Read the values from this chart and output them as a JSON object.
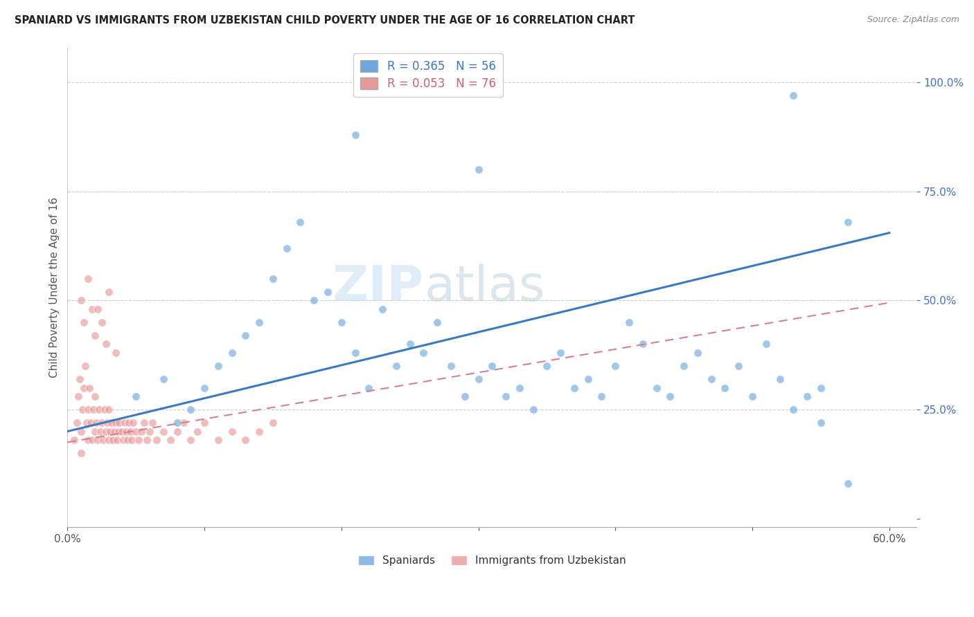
{
  "title": "SPANIARD VS IMMIGRANTS FROM UZBEKISTAN CHILD POVERTY UNDER THE AGE OF 16 CORRELATION CHART",
  "source": "Source: ZipAtlas.com",
  "ylabel": "Child Poverty Under the Age of 16",
  "xlim": [
    0.0,
    0.62
  ],
  "ylim": [
    -0.02,
    1.08
  ],
  "xtick_vals": [
    0.0,
    0.1,
    0.2,
    0.3,
    0.4,
    0.5,
    0.6
  ],
  "xticklabels": [
    "0.0%",
    "",
    "",
    "",
    "",
    "",
    "60.0%"
  ],
  "ytick_vals": [
    0.0,
    0.25,
    0.5,
    0.75,
    1.0
  ],
  "yticklabels": [
    "",
    "25.0%",
    "50.0%",
    "75.0%",
    "100.0%"
  ],
  "spaniards_color": "#6fa8dc",
  "uzbekistan_color": "#ea9999",
  "spaniards_R": 0.365,
  "spaniards_N": 56,
  "uzbekistan_R": 0.053,
  "uzbekistan_N": 76,
  "sp_line_x": [
    0.0,
    0.6
  ],
  "sp_line_y": [
    0.2,
    0.655
  ],
  "uz_line_x": [
    0.0,
    0.6
  ],
  "uz_line_y": [
    0.175,
    0.495
  ],
  "spaniards_x": [
    0.05,
    0.07,
    0.08,
    0.09,
    0.1,
    0.11,
    0.12,
    0.13,
    0.14,
    0.15,
    0.16,
    0.17,
    0.18,
    0.19,
    0.2,
    0.21,
    0.22,
    0.23,
    0.24,
    0.25,
    0.26,
    0.27,
    0.28,
    0.29,
    0.3,
    0.31,
    0.32,
    0.33,
    0.34,
    0.35,
    0.36,
    0.37,
    0.38,
    0.39,
    0.4,
    0.41,
    0.42,
    0.43,
    0.44,
    0.45,
    0.46,
    0.47,
    0.48,
    0.49,
    0.5,
    0.51,
    0.52,
    0.53,
    0.54,
    0.55,
    0.21,
    0.3,
    0.53,
    0.57,
    0.55,
    0.57
  ],
  "spaniards_y": [
    0.28,
    0.32,
    0.22,
    0.25,
    0.3,
    0.35,
    0.38,
    0.42,
    0.45,
    0.55,
    0.62,
    0.68,
    0.5,
    0.52,
    0.45,
    0.38,
    0.3,
    0.48,
    0.35,
    0.4,
    0.38,
    0.45,
    0.35,
    0.28,
    0.32,
    0.35,
    0.28,
    0.3,
    0.25,
    0.35,
    0.38,
    0.3,
    0.32,
    0.28,
    0.35,
    0.45,
    0.4,
    0.3,
    0.28,
    0.35,
    0.38,
    0.32,
    0.3,
    0.35,
    0.28,
    0.4,
    0.32,
    0.25,
    0.28,
    0.3,
    0.88,
    0.8,
    0.97,
    0.68,
    0.22,
    0.08
  ],
  "uzbekistan_x": [
    0.005,
    0.007,
    0.008,
    0.009,
    0.01,
    0.01,
    0.011,
    0.012,
    0.013,
    0.014,
    0.015,
    0.015,
    0.016,
    0.017,
    0.018,
    0.019,
    0.02,
    0.02,
    0.021,
    0.022,
    0.023,
    0.024,
    0.025,
    0.026,
    0.027,
    0.028,
    0.029,
    0.03,
    0.03,
    0.031,
    0.032,
    0.033,
    0.034,
    0.035,
    0.036,
    0.037,
    0.038,
    0.04,
    0.041,
    0.042,
    0.043,
    0.044,
    0.045,
    0.046,
    0.047,
    0.048,
    0.05,
    0.052,
    0.054,
    0.056,
    0.058,
    0.06,
    0.062,
    0.065,
    0.07,
    0.075,
    0.08,
    0.085,
    0.09,
    0.095,
    0.1,
    0.11,
    0.12,
    0.13,
    0.14,
    0.15,
    0.01,
    0.012,
    0.015,
    0.018,
    0.02,
    0.022,
    0.025,
    0.028,
    0.03,
    0.035
  ],
  "uzbekistan_y": [
    0.18,
    0.22,
    0.28,
    0.32,
    0.15,
    0.2,
    0.25,
    0.3,
    0.35,
    0.22,
    0.18,
    0.25,
    0.3,
    0.22,
    0.18,
    0.25,
    0.2,
    0.28,
    0.22,
    0.18,
    0.25,
    0.2,
    0.22,
    0.18,
    0.25,
    0.2,
    0.22,
    0.18,
    0.25,
    0.2,
    0.22,
    0.18,
    0.2,
    0.22,
    0.18,
    0.2,
    0.22,
    0.2,
    0.18,
    0.22,
    0.2,
    0.18,
    0.22,
    0.2,
    0.18,
    0.22,
    0.2,
    0.18,
    0.2,
    0.22,
    0.18,
    0.2,
    0.22,
    0.18,
    0.2,
    0.18,
    0.2,
    0.22,
    0.18,
    0.2,
    0.22,
    0.18,
    0.2,
    0.18,
    0.2,
    0.22,
    0.5,
    0.45,
    0.55,
    0.48,
    0.42,
    0.48,
    0.45,
    0.4,
    0.52,
    0.38
  ]
}
